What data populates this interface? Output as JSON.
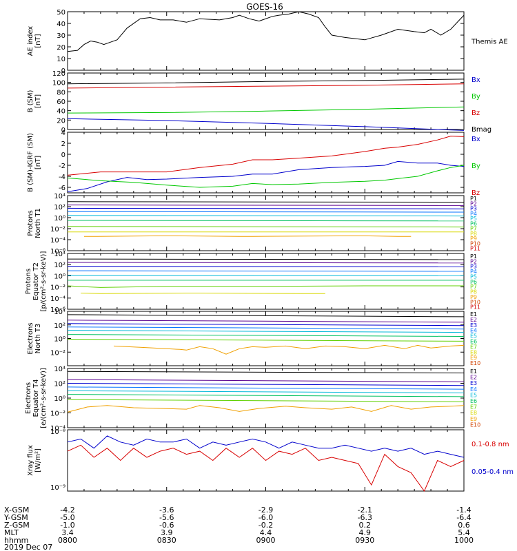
{
  "title": "GOES-16",
  "colors": {
    "black": "#000000",
    "blue": "#0000cc",
    "green": "#00c800",
    "red": "#d80000",
    "channels": [
      "#000000",
      "#5a0090",
      "#0000d0",
      "#0070ff",
      "#00b8d8",
      "#00c060",
      "#60d000",
      "#d8d800",
      "#f0a000",
      "#d04000",
      "#d00000"
    ]
  },
  "chart_data": [
    {
      "id": "ae",
      "type": "line",
      "ylabel": [
        "AE index",
        "[nT]"
      ],
      "ylim": [
        0,
        50
      ],
      "yscale": "linear",
      "yticks": [
        0,
        10,
        20,
        30,
        40,
        50
      ],
      "series": [
        {
          "name": "Themis AE",
          "color": "#000000",
          "x": [
            0,
            3,
            5,
            7,
            9,
            11,
            13,
            15,
            18,
            22,
            25,
            28,
            32,
            36,
            40,
            46,
            50,
            52,
            55,
            58,
            62,
            64,
            67,
            70,
            73,
            76,
            78,
            80,
            84,
            90,
            95,
            100,
            105,
            108,
            110,
            113,
            116,
            120
          ],
          "y": [
            16,
            17,
            22,
            25,
            24,
            22,
            24,
            26,
            36,
            44,
            45,
            43,
            43,
            41,
            44,
            43,
            45,
            47,
            44,
            42,
            46,
            47,
            48,
            50,
            48,
            45,
            37,
            30,
            28,
            26,
            30,
            35,
            33,
            32,
            35,
            30,
            35,
            47
          ]
        }
      ]
    },
    {
      "id": "b",
      "type": "line",
      "ylabel": [
        "B (SM)",
        "[nT]"
      ],
      "ylim": [
        0,
        120
      ],
      "yscale": "linear",
      "yticks": [
        0,
        20,
        40,
        60,
        80,
        100,
        120
      ],
      "series": [
        {
          "name": "Bx",
          "color": "#0000cc",
          "x": [
            0,
            30,
            60,
            90,
            120
          ],
          "y": [
            23,
            19,
            13,
            6,
            -2
          ]
        },
        {
          "name": "By",
          "color": "#00c800",
          "x": [
            0,
            30,
            60,
            90,
            120
          ],
          "y": [
            35,
            36,
            39,
            43,
            48
          ]
        },
        {
          "name": "Bz",
          "color": "#d80000",
          "x": [
            0,
            30,
            60,
            90,
            120
          ],
          "y": [
            88,
            90,
            92,
            94,
            97
          ]
        },
        {
          "name": "Bmag",
          "color": "#000000",
          "x": [
            0,
            30,
            60,
            90,
            120
          ],
          "y": [
            97,
            99,
            102,
            104,
            107
          ]
        }
      ]
    },
    {
      "id": "db",
      "type": "line",
      "ylabel": [
        "B (SM)-IGRF (SM)",
        "[nT]"
      ],
      "ylim": [
        -7,
        4
      ],
      "yscale": "linear",
      "yticks": [
        -6,
        -4,
        -2,
        0,
        2,
        4
      ],
      "series": [
        {
          "name": "Bx",
          "color": "#0000cc",
          "x": [
            0,
            6,
            12,
            18,
            24,
            30,
            40,
            50,
            56,
            62,
            70,
            80,
            90,
            96,
            100,
            106,
            112,
            116,
            120
          ],
          "y": [
            -6.8,
            -6.2,
            -5.0,
            -4.2,
            -4.6,
            -4.5,
            -4.2,
            -4.0,
            -3.6,
            -3.6,
            -2.8,
            -2.4,
            -2.2,
            -2.0,
            -1.3,
            -1.6,
            -1.6,
            -2.0,
            -2.2
          ]
        },
        {
          "name": "By",
          "color": "#00c800",
          "x": [
            0,
            10,
            20,
            30,
            40,
            50,
            56,
            62,
            70,
            80,
            90,
            96,
            100,
            106,
            112,
            116,
            120
          ],
          "y": [
            -4.3,
            -4.8,
            -5.1,
            -5.6,
            -6.0,
            -5.8,
            -5.3,
            -5.5,
            -5.4,
            -5.1,
            -4.9,
            -4.7,
            -4.4,
            -4.0,
            -3.0,
            -2.4,
            -2.0
          ]
        },
        {
          "name": "Bz",
          "color": "#d80000",
          "x": [
            0,
            10,
            20,
            30,
            40,
            50,
            56,
            62,
            70,
            80,
            90,
            96,
            100,
            106,
            112,
            116,
            120
          ],
          "y": [
            -3.8,
            -3.2,
            -3.2,
            -3.2,
            -2.4,
            -1.8,
            -1.0,
            -1.0,
            -0.7,
            -0.3,
            0.5,
            1.1,
            1.3,
            1.8,
            2.6,
            3.3,
            3.2
          ]
        }
      ]
    },
    {
      "id": "pn",
      "type": "line",
      "ylabel": [
        "Protons",
        "North T1"
      ],
      "ylim": [
        -6,
        4
      ],
      "yscale": "log",
      "yticks": [
        -6,
        -4,
        -2,
        0,
        2,
        4
      ],
      "legend_small": true,
      "series": [
        {
          "name": "P1",
          "x": [
            0,
            120
          ],
          "y": [
            2.9,
            2.8
          ]
        },
        {
          "name": "P2",
          "x": [
            0,
            120
          ],
          "y": [
            2.3,
            2.2
          ]
        },
        {
          "name": "P3",
          "x": [
            0,
            120
          ],
          "y": [
            1.7,
            1.6
          ]
        },
        {
          "name": "P4",
          "x": [
            0,
            120
          ],
          "y": [
            1.1,
            1.0
          ]
        },
        {
          "name": "P5",
          "x": [
            0,
            120
          ],
          "y": [
            0.4,
            0.3
          ]
        },
        {
          "name": "P6",
          "x": [
            0,
            120
          ],
          "y": [
            -0.5,
            -0.6
          ]
        },
        {
          "name": "P7",
          "x": [
            0,
            120
          ],
          "y": [
            -1.6,
            -1.7
          ]
        },
        {
          "name": "P8",
          "x": [
            0,
            120
          ],
          "y": [
            -2.6,
            -2.6
          ]
        },
        {
          "name": "P9",
          "x": [
            5,
            9,
            28,
            32,
            52,
            56,
            86,
            90,
            100,
            104
          ],
          "y": [
            -3.4,
            -3.4,
            -3.3,
            -3.3,
            -3.4,
            -3.4,
            -3.3,
            -3.3,
            -3.4,
            -3.4
          ]
        },
        {
          "name": "P10",
          "x": [],
          "y": []
        },
        {
          "name": "P11",
          "x": [],
          "y": []
        }
      ]
    },
    {
      "id": "pe",
      "type": "line",
      "ylabel": [
        "Protons",
        "Equator T2",
        "[p/(cm²-s-sr-keV)]"
      ],
      "ylim": [
        -6,
        4
      ],
      "yscale": "log",
      "yticks": [
        -6,
        -4,
        -2,
        0,
        2,
        4
      ],
      "legend_small": true,
      "series": [
        {
          "name": "P1",
          "x": [
            0,
            120
          ],
          "y": [
            3.0,
            2.9
          ]
        },
        {
          "name": "P2",
          "x": [
            0,
            120
          ],
          "y": [
            2.4,
            2.3
          ]
        },
        {
          "name": "P3",
          "x": [
            0,
            120
          ],
          "y": [
            1.7,
            1.6
          ]
        },
        {
          "name": "P4",
          "x": [
            0,
            120
          ],
          "y": [
            0.9,
            0.8
          ]
        },
        {
          "name": "P5",
          "x": [
            0,
            120
          ],
          "y": [
            0.1,
            0.0
          ]
        },
        {
          "name": "P6",
          "x": [
            0,
            120
          ],
          "y": [
            -0.8,
            -0.8
          ]
        },
        {
          "name": "P7",
          "x": [
            0,
            10,
            30,
            60,
            90,
            120
          ],
          "y": [
            -1.8,
            -2.1,
            -1.9,
            -1.9,
            -1.8,
            -1.8
          ]
        },
        {
          "name": "P8",
          "x": [
            4,
            10,
            36,
            40,
            72,
            78
          ],
          "y": [
            -3.1,
            -3.2,
            -3.1,
            -3.1,
            -3.2,
            -3.2
          ]
        },
        {
          "name": "P9",
          "x": [],
          "y": []
        },
        {
          "name": "P10",
          "x": [],
          "y": []
        },
        {
          "name": "P11",
          "x": [],
          "y": []
        }
      ]
    },
    {
      "id": "en",
      "type": "line",
      "ylabel": [
        "Electrons",
        "North T3"
      ],
      "ylim": [
        -4,
        4
      ],
      "yscale": "log",
      "yticks": [
        -2,
        0,
        2,
        4
      ],
      "series": [
        {
          "name": "E1",
          "x": [
            0,
            120
          ],
          "y": [
            3.5,
            3.2
          ]
        },
        {
          "name": "E2",
          "x": [
            0,
            120
          ],
          "y": [
            2.7,
            2.4
          ]
        },
        {
          "name": "E3",
          "x": [
            0,
            120
          ],
          "y": [
            2.2,
            1.9
          ]
        },
        {
          "name": "E4",
          "x": [
            0,
            120
          ],
          "y": [
            1.7,
            1.4
          ]
        },
        {
          "name": "E5",
          "x": [
            0,
            120
          ],
          "y": [
            1.2,
            0.9
          ]
        },
        {
          "name": "E6",
          "x": [
            0,
            120
          ],
          "y": [
            0.6,
            0.3
          ]
        },
        {
          "name": "E7",
          "x": [
            0,
            120
          ],
          "y": [
            -0.1,
            -0.4
          ]
        },
        {
          "name": "E8",
          "x": [],
          "y": []
        },
        {
          "name": "E9",
          "x": [
            14,
            22,
            30,
            34,
            36,
            40,
            44,
            48,
            52,
            56,
            60,
            66,
            72,
            78,
            84,
            90,
            96,
            102,
            106,
            110,
            116,
            120
          ],
          "y": [
            -1.1,
            -1.3,
            -1.5,
            -1.6,
            -1.7,
            -1.2,
            -1.5,
            -2.3,
            -1.5,
            -1.2,
            -1.3,
            -1.1,
            -1.5,
            -1.1,
            -1.2,
            -1.5,
            -1.0,
            -1.5,
            -1.0,
            -1.4,
            -1.1,
            -1.0
          ]
        },
        {
          "name": "E10",
          "x": [],
          "y": []
        }
      ]
    },
    {
      "id": "ee",
      "type": "line",
      "ylabel": [
        "Electrons",
        "Equator T4",
        "[e/(cm²-s-sr-keV)]"
      ],
      "ylim": [
        -4,
        4
      ],
      "yscale": "log",
      "yticks": [
        -4,
        -2,
        0,
        2,
        4
      ],
      "series": [
        {
          "name": "E1",
          "x": [
            0,
            120
          ],
          "y": [
            3.6,
            3.4
          ]
        },
        {
          "name": "E2",
          "x": [
            0,
            120
          ],
          "y": [
            2.5,
            2.2
          ]
        },
        {
          "name": "E3",
          "x": [
            0,
            120
          ],
          "y": [
            2.0,
            1.7
          ]
        },
        {
          "name": "E4",
          "x": [
            0,
            120
          ],
          "y": [
            1.5,
            1.2
          ]
        },
        {
          "name": "E5",
          "x": [
            0,
            120
          ],
          "y": [
            1.0,
            0.7
          ]
        },
        {
          "name": "E6",
          "x": [
            0,
            120
          ],
          "y": [
            0.5,
            0.2
          ]
        },
        {
          "name": "E7",
          "x": [
            0,
            120
          ],
          "y": [
            -0.2,
            -0.5
          ]
        },
        {
          "name": "E8",
          "x": [],
          "y": []
        },
        {
          "name": "E9",
          "x": [
            0,
            6,
            12,
            20,
            28,
            36,
            40,
            46,
            52,
            58,
            66,
            72,
            80,
            86,
            92,
            98,
            104,
            110,
            116,
            120
          ],
          "y": [
            -1.9,
            -1.2,
            -1.0,
            -1.3,
            -1.4,
            -1.5,
            -1.0,
            -1.3,
            -1.8,
            -1.4,
            -1.1,
            -1.3,
            -1.5,
            -1.2,
            -1.8,
            -1.0,
            -1.5,
            -1.2,
            -1.1,
            -1.0
          ]
        },
        {
          "name": "E10",
          "x": [],
          "y": []
        }
      ]
    },
    {
      "id": "xray",
      "type": "line",
      "ylabel": [
        "Xray flux",
        "[W/m²]"
      ],
      "ylim": [
        -9,
        -8
      ],
      "yscale": "log",
      "ytick_labels": [
        "10⁻⁸",
        "10⁻⁹"
      ],
      "series": [
        {
          "name": "0.05-0.4 nm",
          "color": "#0000cc",
          "x": [
            0,
            4,
            8,
            12,
            16,
            20,
            24,
            28,
            32,
            36,
            40,
            44,
            48,
            52,
            56,
            60,
            64,
            68,
            72,
            76,
            80,
            84,
            88,
            92,
            96,
            100,
            104,
            108,
            112,
            116,
            120
          ],
          "y": [
            -8.2,
            -8.15,
            -8.3,
            -8.1,
            -8.2,
            -8.25,
            -8.15,
            -8.2,
            -8.2,
            -8.15,
            -8.3,
            -8.2,
            -8.25,
            -8.2,
            -8.15,
            -8.2,
            -8.3,
            -8.2,
            -8.25,
            -8.3,
            -8.3,
            -8.25,
            -8.3,
            -8.35,
            -8.3,
            -8.35,
            -8.3,
            -8.4,
            -8.35,
            -8.4,
            -8.45
          ]
        },
        {
          "name": "0.1-0.8 nm",
          "color": "#d80000",
          "x": [
            0,
            4,
            8,
            12,
            16,
            20,
            24,
            28,
            32,
            36,
            40,
            44,
            48,
            52,
            56,
            60,
            64,
            68,
            72,
            76,
            80,
            84,
            88,
            92,
            96,
            100,
            104,
            108,
            112,
            116,
            120
          ],
          "y": [
            -8.35,
            -8.25,
            -8.45,
            -8.3,
            -8.5,
            -8.3,
            -8.45,
            -8.35,
            -8.3,
            -8.4,
            -8.35,
            -8.5,
            -8.3,
            -8.45,
            -8.3,
            -8.5,
            -8.35,
            -8.4,
            -8.3,
            -8.5,
            -8.45,
            -8.5,
            -8.55,
            -8.9,
            -8.4,
            -8.6,
            -8.7,
            -9.0,
            -8.5,
            -8.6,
            -8.5
          ]
        }
      ]
    }
  ],
  "themis_label": "Themis AE",
  "footer": {
    "row_labels": [
      "X-GSM",
      "Y-GSM",
      "Z-GSM",
      "MLT",
      "hhmm",
      "2019 Dec 07"
    ],
    "columns": [
      {
        "x": 0,
        "values": [
          "-4.2",
          "-5.0",
          "-1.0",
          "3.4",
          "0800"
        ]
      },
      {
        "x": 30,
        "values": [
          "-3.6",
          "-5.6",
          "-0.6",
          "3.9",
          "0830"
        ]
      },
      {
        "x": 60,
        "values": [
          "-2.9",
          "-6.0",
          "-0.2",
          "4.4",
          "0900"
        ]
      },
      {
        "x": 90,
        "values": [
          "-2.1",
          "-6.3",
          "0.2",
          "4.9",
          "0930"
        ]
      },
      {
        "x": 120,
        "values": [
          "-1.4",
          "-6.4",
          "0.6",
          "5.4",
          "1000"
        ]
      }
    ]
  }
}
